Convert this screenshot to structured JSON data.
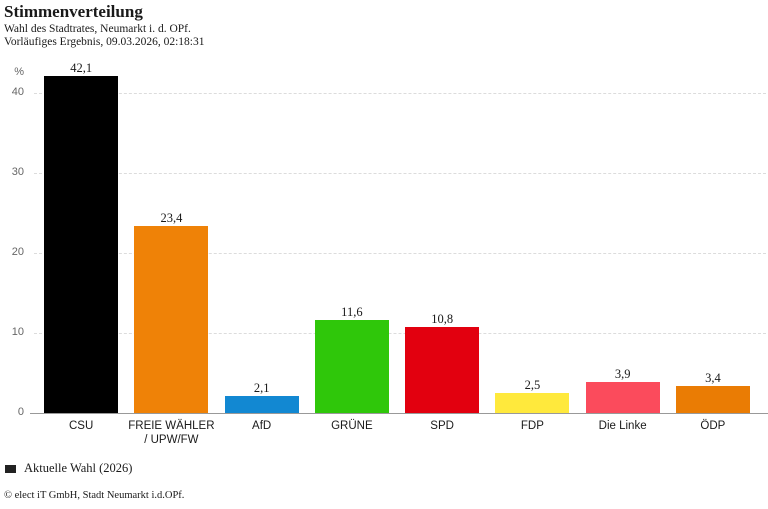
{
  "header": {
    "title": "Stimmenverteilung",
    "subtitle1": "Wahl des Stadtrates, Neumarkt i. d. OPf.",
    "subtitle2": "Vorläufiges Ergebnis, 09.03.2026, 02:18:31"
  },
  "chart_data": {
    "type": "bar",
    "title": "Stimmenverteilung",
    "xlabel": "",
    "ylabel": "%",
    "categories": [
      "CSU",
      "FREIE WÄHLER\n/ UPW/FW",
      "AfD",
      "GRÜNE",
      "SPD",
      "FDP",
      "Die Linke",
      "ÖDP"
    ],
    "ids": [
      "csu",
      "freie-waehler-upw-fw",
      "afd",
      "gruene",
      "spd",
      "fdp",
      "die-linke",
      "oedp"
    ],
    "values": [
      42.1,
      23.4,
      2.1,
      11.6,
      10.8,
      2.5,
      3.9,
      3.4
    ],
    "value_labels": [
      "42,1",
      "23,4",
      "2,1",
      "11,6",
      "10,8",
      "2,5",
      "3,9",
      "3,4"
    ],
    "bar_colors": [
      "#000000",
      "#ef8207",
      "#1288d2",
      "#2fc70a",
      "#e2000f",
      "#ffe93c",
      "#fb4b5c",
      "#ea7c04"
    ],
    "ylim": [
      0,
      44
    ],
    "yticks": [
      0,
      10,
      20,
      30,
      40
    ],
    "grid": "horizontal-dashed",
    "legend_position": "bottom-left"
  },
  "legend": {
    "items": [
      {
        "label": "Aktuelle Wahl (2026)",
        "color": "#222222"
      }
    ]
  },
  "footer": {
    "copyright": "© elect iT GmbH, Stadt Neumarkt i.d.OPf."
  }
}
